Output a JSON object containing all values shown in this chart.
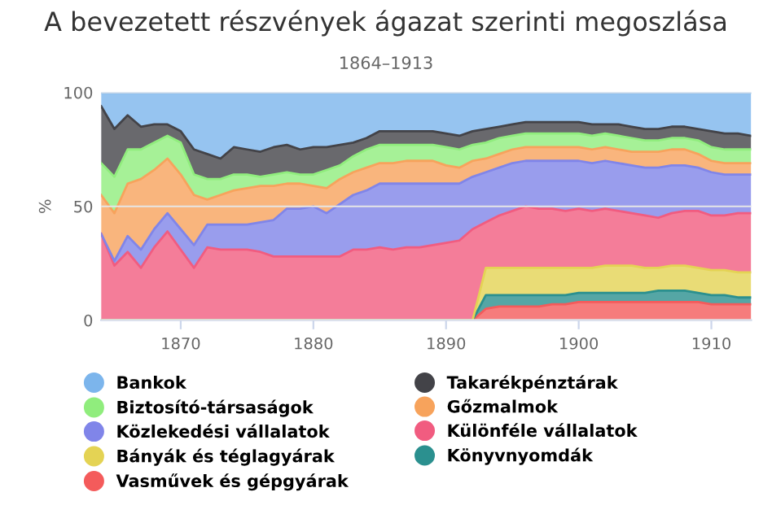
{
  "chart_data": {
    "type": "area",
    "stacked": true,
    "title": "A bevezetett részvények ágazat szerinti megoszlása",
    "subtitle": "1864–1913",
    "ylabel": "%",
    "x": [
      1864,
      1865,
      1866,
      1867,
      1868,
      1869,
      1870,
      1871,
      1872,
      1873,
      1874,
      1875,
      1876,
      1877,
      1878,
      1879,
      1880,
      1881,
      1882,
      1883,
      1884,
      1885,
      1886,
      1887,
      1888,
      1889,
      1890,
      1891,
      1892,
      1893,
      1894,
      1895,
      1896,
      1897,
      1898,
      1899,
      1900,
      1901,
      1902,
      1903,
      1904,
      1905,
      1906,
      1907,
      1908,
      1909,
      1910,
      1911,
      1912,
      1913
    ],
    "xlim": [
      1864,
      1913
    ],
    "xticks": [
      1870,
      1880,
      1890,
      1900,
      1910
    ],
    "ylim": [
      0,
      100
    ],
    "yticks": [
      0,
      50,
      100
    ],
    "grid": "y",
    "legend": "bottom",
    "series": [
      {
        "name": "Vasművek és gépgyárak",
        "color": "#f45b5b",
        "values": [
          0,
          0,
          0,
          0,
          0,
          0,
          0,
          0,
          0,
          0,
          0,
          0,
          0,
          0,
          0,
          0,
          0,
          0,
          0,
          0,
          0,
          0,
          0,
          0,
          0,
          0,
          0,
          0,
          0,
          5,
          6,
          6,
          6,
          6,
          7,
          7,
          8,
          8,
          8,
          8,
          8,
          8,
          8,
          8,
          8,
          8,
          7,
          7,
          7,
          7
        ]
      },
      {
        "name": "Könyvnyomdák",
        "color": "#2b908f",
        "values": [
          0,
          0,
          0,
          0,
          0,
          0,
          0,
          0,
          0,
          0,
          0,
          0,
          0,
          0,
          0,
          0,
          0,
          0,
          0,
          0,
          0,
          0,
          0,
          0,
          0,
          0,
          0,
          0,
          0,
          6,
          5,
          5,
          5,
          5,
          4,
          4,
          4,
          4,
          4,
          4,
          4,
          4,
          5,
          5,
          5,
          4,
          4,
          4,
          3,
          3
        ]
      },
      {
        "name": "Bányák és téglagyárak",
        "color": "#e4d354",
        "values": [
          0,
          0,
          0,
          0,
          0,
          0,
          0,
          0,
          0,
          0,
          0,
          0,
          0,
          0,
          0,
          0,
          0,
          0,
          0,
          0,
          0,
          0,
          0,
          0,
          0,
          0,
          0,
          0,
          0,
          12,
          12,
          12,
          12,
          12,
          12,
          12,
          11,
          11,
          12,
          12,
          12,
          11,
          10,
          11,
          11,
          11,
          11,
          11,
          11,
          11
        ]
      },
      {
        "name": "Különféle vállalatok",
        "color": "#f15c80",
        "values": [
          38,
          24,
          30,
          23,
          32,
          39,
          31,
          23,
          32,
          31,
          31,
          31,
          30,
          28,
          28,
          28,
          28,
          28,
          28,
          31,
          31,
          32,
          31,
          32,
          32,
          33,
          34,
          35,
          40,
          20,
          23,
          25,
          27,
          26,
          26,
          25,
          26,
          25,
          25,
          24,
          23,
          23,
          22,
          23,
          24,
          25,
          24,
          24,
          26,
          26
        ]
      },
      {
        "name": "Közlekedési vállalatok",
        "color": "#8085e9",
        "values": [
          0,
          2,
          7,
          8,
          8,
          8,
          9,
          10,
          10,
          11,
          11,
          11,
          13,
          16,
          21,
          21,
          22,
          19,
          23,
          24,
          26,
          28,
          29,
          28,
          28,
          27,
          26,
          25,
          23,
          22,
          21,
          21,
          20,
          21,
          21,
          22,
          21,
          21,
          21,
          21,
          21,
          21,
          22,
          21,
          20,
          19,
          19,
          18,
          17,
          17
        ]
      },
      {
        "name": "Gőzmalmok",
        "color": "#f7a35c",
        "values": [
          17,
          21,
          23,
          31,
          26,
          24,
          24,
          22,
          11,
          13,
          15,
          16,
          16,
          15,
          11,
          11,
          9,
          11,
          11,
          10,
          10,
          9,
          9,
          10,
          10,
          10,
          8,
          7,
          7,
          6,
          6,
          6,
          6,
          6,
          6,
          6,
          6,
          6,
          6,
          6,
          6,
          7,
          7,
          7,
          7,
          6,
          5,
          5,
          5,
          5
        ]
      },
      {
        "name": "Biztosító-társaságok",
        "color": "#90ed7d",
        "values": [
          14,
          16,
          15,
          13,
          12,
          10,
          14,
          9,
          9,
          7,
          7,
          6,
          4,
          5,
          5,
          4,
          5,
          8,
          6,
          7,
          8,
          8,
          8,
          7,
          7,
          7,
          8,
          8,
          7,
          7,
          7,
          6,
          6,
          6,
          6,
          6,
          6,
          6,
          6,
          6,
          6,
          5,
          5,
          5,
          5,
          6,
          6,
          6,
          6,
          6
        ]
      },
      {
        "name": "Takarékpénztárak",
        "color": "#434348",
        "values": [
          25,
          21,
          15,
          10,
          8,
          5,
          5,
          11,
          11,
          9,
          12,
          11,
          11,
          12,
          12,
          11,
          12,
          10,
          9,
          6,
          5,
          6,
          6,
          6,
          6,
          6,
          6,
          6,
          6,
          6,
          5,
          5,
          5,
          5,
          5,
          5,
          5,
          5,
          4,
          5,
          5,
          5,
          5,
          5,
          5,
          5,
          7,
          7,
          7,
          6
        ]
      },
      {
        "name": "Bankok",
        "color": "#7cb5ec",
        "values": [
          6,
          16,
          10,
          15,
          14,
          14,
          17,
          25,
          27,
          29,
          24,
          25,
          26,
          24,
          23,
          25,
          24,
          24,
          23,
          22,
          20,
          17,
          17,
          17,
          17,
          17,
          18,
          19,
          17,
          16,
          15,
          14,
          13,
          13,
          13,
          13,
          13,
          14,
          14,
          14,
          15,
          16,
          16,
          15,
          15,
          16,
          17,
          18,
          18,
          19
        ]
      }
    ]
  }
}
